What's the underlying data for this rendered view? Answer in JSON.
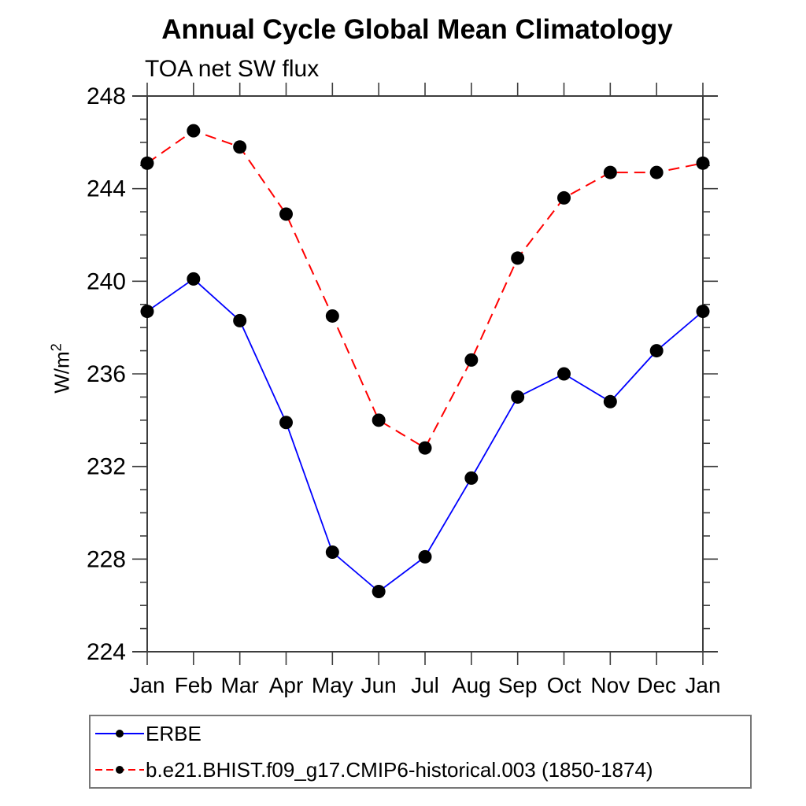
{
  "chart_data": {
    "type": "line",
    "title": "Annual Cycle Global Mean Climatology",
    "subtitle": "TOA net SW flux",
    "ylabel": "W/m²",
    "ylabel_parts": {
      "base": "W/m",
      "sup": "2"
    },
    "categories": [
      "Jan",
      "Feb",
      "Mar",
      "Apr",
      "May",
      "Jun",
      "Jul",
      "Aug",
      "Sep",
      "Oct",
      "Nov",
      "Dec",
      "Jan"
    ],
    "ylim": [
      224,
      248
    ],
    "yticks_major": [
      224,
      228,
      232,
      236,
      240,
      244,
      248
    ],
    "ytick_minor_step": 1,
    "grid": false,
    "legend_position": "bottom-left",
    "marker": "filled-circle",
    "marker_color": "#000000",
    "series": [
      {
        "name": "ERBE",
        "color": "#0000ff",
        "style": "solid",
        "values": [
          238.7,
          240.1,
          238.3,
          233.9,
          228.3,
          226.6,
          228.1,
          231.5,
          235.0,
          236.0,
          234.8,
          237.0,
          238.7
        ]
      },
      {
        "name": "b.e21.BHIST.f09_g17.CMIP6-historical.003 (1850-1874)",
        "color": "#ff0000",
        "style": "dashed",
        "values": [
          245.1,
          246.5,
          245.8,
          242.9,
          238.5,
          234.0,
          232.8,
          236.6,
          241.0,
          243.6,
          244.7,
          244.7,
          245.1
        ]
      }
    ]
  },
  "axis_color": "#3d3d3d"
}
